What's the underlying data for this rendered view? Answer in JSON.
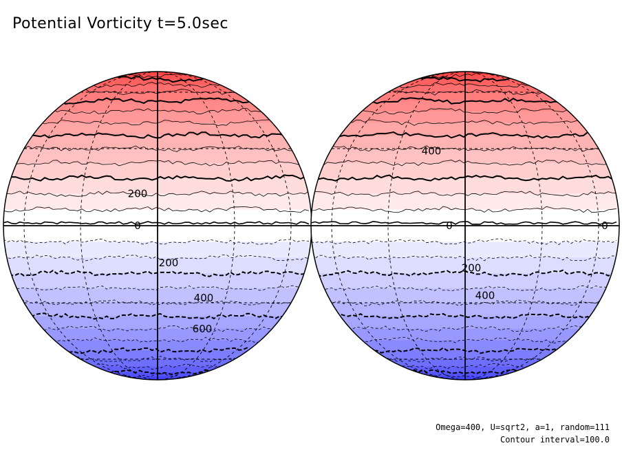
{
  "title": "Potential Vorticity t=5.0sec",
  "footer": {
    "params": "Omega=400, U=sqrt2, a=1, random=111",
    "interval": "Contour interval=100.0"
  },
  "colors": {
    "north_pole": "#ff3b3b",
    "equator": "#ffffff",
    "south_pole": "#3b3bff"
  },
  "globes": [
    {
      "labels": [
        {
          "text": "200",
          "lat": 12
        },
        {
          "text": "0",
          "lat": 0
        },
        {
          "text": "200",
          "lat": -14
        },
        {
          "text": "400",
          "lat": -28
        },
        {
          "text": "600",
          "lat": -42
        }
      ]
    },
    {
      "labels": [
        {
          "text": "400",
          "lat": 29
        },
        {
          "text": "0",
          "lat": 0
        },
        {
          "text": "0",
          "lat": 0
        },
        {
          "text": "200",
          "lat": -16
        },
        {
          "text": "400",
          "lat": -27
        }
      ]
    }
  ]
}
